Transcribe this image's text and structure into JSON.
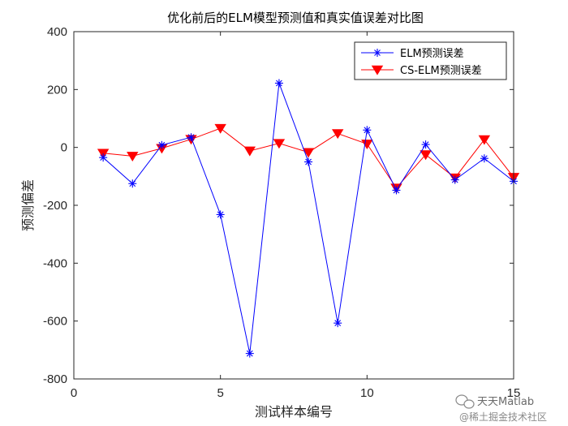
{
  "chart_data": {
    "type": "line",
    "title": "优化前后的ELM模型预测值和真实值误差对比图",
    "xlabel": "测试样本编号",
    "ylabel": "预测偏差",
    "xlim": [
      0,
      15
    ],
    "ylim": [
      -800,
      400
    ],
    "xticks": [
      0,
      5,
      10,
      15
    ],
    "yticks": [
      -800,
      -600,
      -400,
      -200,
      0,
      200,
      400
    ],
    "x": [
      1,
      2,
      3,
      4,
      5,
      6,
      7,
      8,
      9,
      10,
      11,
      12,
      13,
      14,
      15
    ],
    "series": [
      {
        "name": "ELM预测误差",
        "color": "#0000ff",
        "marker": "asterisk",
        "values": [
          -35,
          -125,
          8,
          35,
          -232,
          -712,
          222,
          -50,
          -607,
          60,
          -148,
          10,
          -112,
          -38,
          -117
        ]
      },
      {
        "name": "CS-ELM预测误差",
        "color": "#ff0000",
        "marker": "triangle-down",
        "values": [
          -20,
          -30,
          -3,
          28,
          66,
          -12,
          14,
          -17,
          48,
          12,
          -140,
          -25,
          -105,
          27,
          -103
        ]
      }
    ],
    "grid": false,
    "legend_position": "top-right"
  },
  "watermark": {
    "line1": "天天Matlab",
    "line2": "@稀土掘金技术社区"
  }
}
